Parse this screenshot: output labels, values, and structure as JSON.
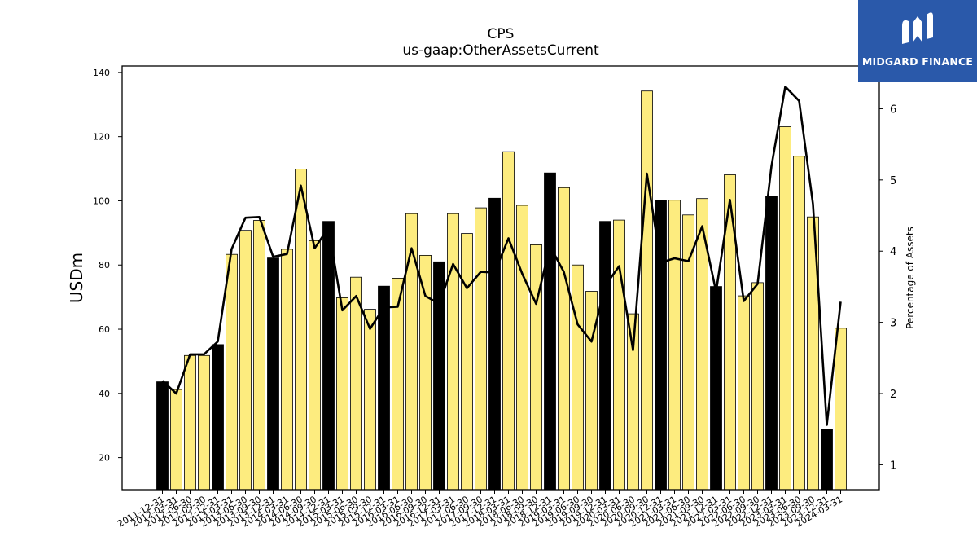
{
  "chart_data": {
    "type": "bar",
    "title": "CPS",
    "subtitle": "us-gaap:OtherAssetsCurrent",
    "ylabel": "USDm",
    "y2label": "Percentage of Assets",
    "ylim": [
      10,
      142
    ],
    "y2lim": [
      0.65,
      6.6
    ],
    "yticks": [
      20,
      40,
      60,
      80,
      100,
      120,
      140
    ],
    "y2ticks": [
      1,
      2,
      3,
      4,
      5,
      6
    ],
    "categories": [
      "2011-12-31",
      "2012-03-31",
      "2012-06-30",
      "2012-09-30",
      "2012-12-31",
      "2013-03-31",
      "2013-06-30",
      "2013-09-30",
      "2013-12-31",
      "2014-03-31",
      "2014-06-30",
      "2014-09-30",
      "2014-12-31",
      "2015-03-31",
      "2015-06-30",
      "2015-09-30",
      "2015-12-31",
      "2016-03-31",
      "2016-06-30",
      "2016-09-30",
      "2016-12-31",
      "2017-03-31",
      "2017-06-30",
      "2017-09-30",
      "2017-12-31",
      "2018-03-31",
      "2018-06-30",
      "2018-09-30",
      "2018-12-31",
      "2019-03-31",
      "2019-06-30",
      "2019-09-30",
      "2019-12-31",
      "2020-03-31",
      "2020-06-30",
      "2020-09-30",
      "2020-12-31",
      "2021-03-31",
      "2021-06-30",
      "2021-09-30",
      "2021-12-31",
      "2022-03-31",
      "2022-06-30",
      "2022-09-30",
      "2022-12-31",
      "2023-03-31",
      "2023-06-30",
      "2023-09-30",
      "2023-12-31",
      "2024-03-31"
    ],
    "series": [
      {
        "type": "bar",
        "axis": "left",
        "values": [
          43.6,
          41.2,
          51.8,
          51.8,
          55.2,
          83.3,
          90.8,
          93.9,
          82.2,
          84.9,
          109.9,
          87.6,
          93.6,
          69.8,
          76.2,
          66.2,
          73.4,
          75.9,
          96.0,
          83.0,
          81.0,
          96.0,
          89.8,
          97.8,
          100.8,
          115.3,
          98.6,
          86.3,
          108.7,
          104.1,
          80.0,
          71.8,
          93.6,
          94.0,
          64.8,
          134.2,
          100.2,
          100.2,
          95.6,
          100.7,
          73.3,
          108.1,
          70.4,
          74.5,
          101.4,
          123.1,
          113.9,
          95.0,
          28.8,
          60.3
        ],
        "highlight_quarter_end": "12-31",
        "highlight_color": "#000000",
        "color": "#fdec7f"
      },
      {
        "type": "line",
        "axis": "right",
        "color": "#000000",
        "values": [
          2.18,
          2.0,
          2.55,
          2.55,
          2.73,
          4.03,
          4.47,
          4.48,
          3.92,
          3.96,
          4.92,
          4.04,
          4.33,
          3.17,
          3.37,
          2.91,
          3.21,
          3.22,
          4.04,
          3.37,
          3.26,
          3.82,
          3.48,
          3.71,
          3.7,
          4.18,
          3.68,
          3.26,
          4.07,
          3.71,
          2.97,
          2.73,
          3.52,
          3.79,
          2.61,
          5.09,
          3.84,
          3.9,
          3.86,
          4.35,
          3.43,
          4.72,
          3.3,
          3.54,
          5.19,
          6.31,
          6.11,
          4.66,
          1.56,
          3.29
        ]
      }
    ]
  },
  "logo": {
    "text": "MIDGARD FINANCE"
  }
}
